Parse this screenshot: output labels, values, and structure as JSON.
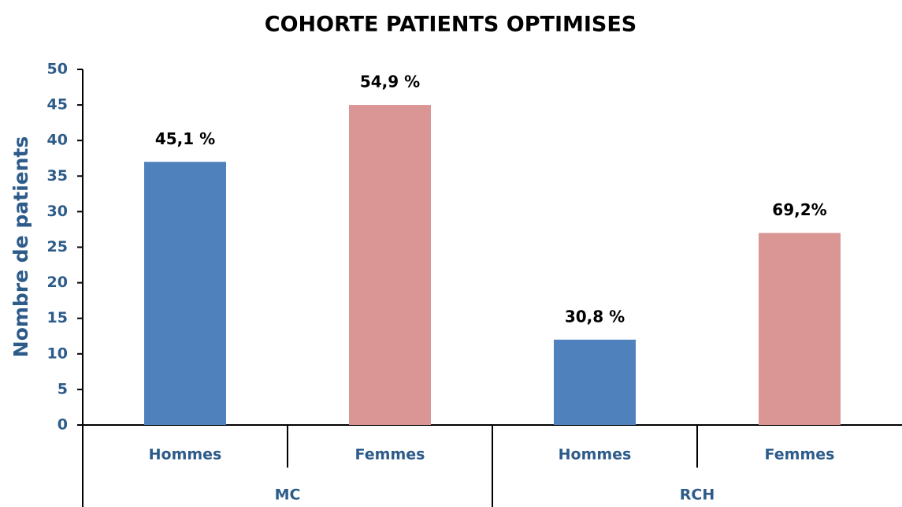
{
  "chart_data": {
    "type": "bar",
    "title": "COHORTE PATIENTS OPTIMISES",
    "y_label": "Nombre de patients",
    "categories": [
      "Hommes",
      "Femmes",
      "Hommes",
      "Femmes"
    ],
    "groups": [
      "MC",
      "RCH"
    ],
    "values": [
      37,
      45,
      12,
      27
    ],
    "bar_labels": [
      "45,1 %",
      "54,9 %",
      "30,8 %",
      "69,2%"
    ],
    "colors": [
      "#4f81bd",
      "#d99694",
      "#4f81bd",
      "#d99694"
    ],
    "ylim": [
      0,
      50
    ],
    "yticks": [
      0,
      5,
      10,
      15,
      20,
      25,
      30,
      35,
      40,
      45,
      50
    ],
    "grid": false
  }
}
